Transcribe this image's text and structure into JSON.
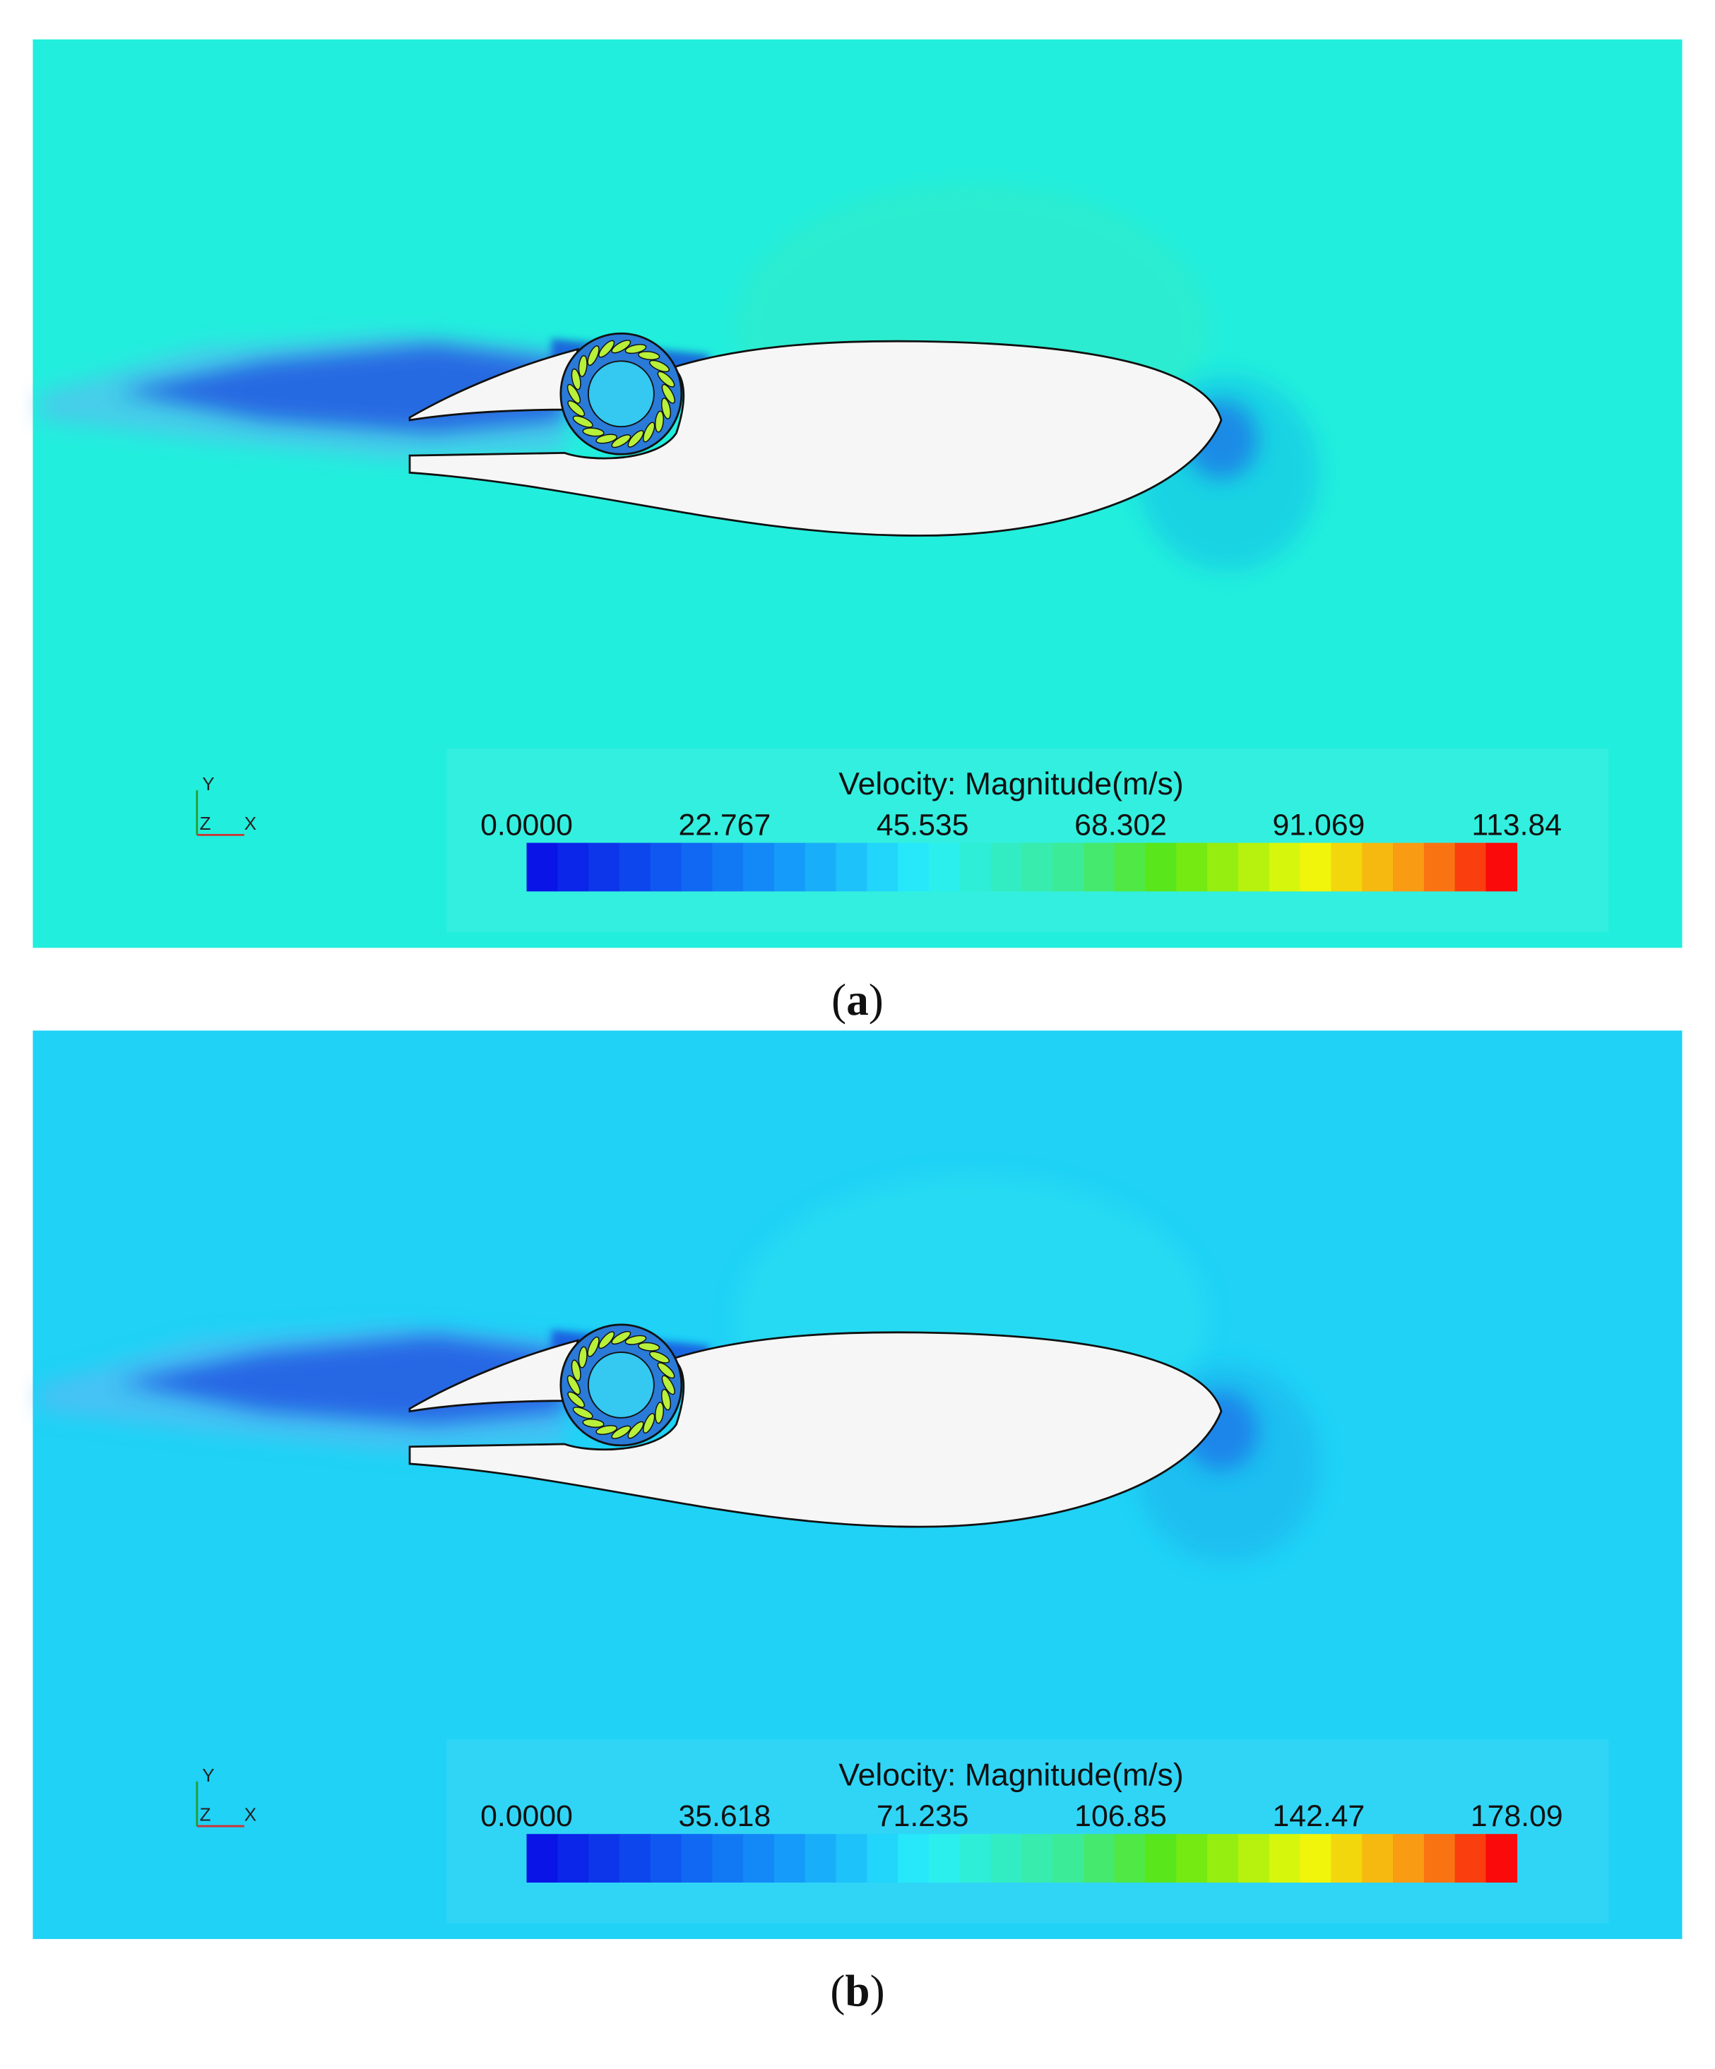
{
  "panels": [
    {
      "caption": [
        "(",
        "a",
        ")"
      ],
      "triad": {
        "y": "Y",
        "z": "Z",
        "x": "X"
      },
      "colorbar": {
        "title": "Velocity: Magnitude(m/s)",
        "ticks": [
          "0.0000",
          "22.767",
          "45.535",
          "68.302",
          "91.069",
          "113.84"
        ]
      }
    },
    {
      "caption": [
        "(",
        "b",
        ")"
      ],
      "triad": {
        "y": "Y",
        "z": "Z",
        "x": "X"
      },
      "colorbar": {
        "title": "Velocity: Magnitude(m/s)",
        "ticks": [
          "0.0000",
          "35.618",
          "71.235",
          "106.85",
          "142.47",
          "178.09"
        ]
      }
    }
  ]
}
